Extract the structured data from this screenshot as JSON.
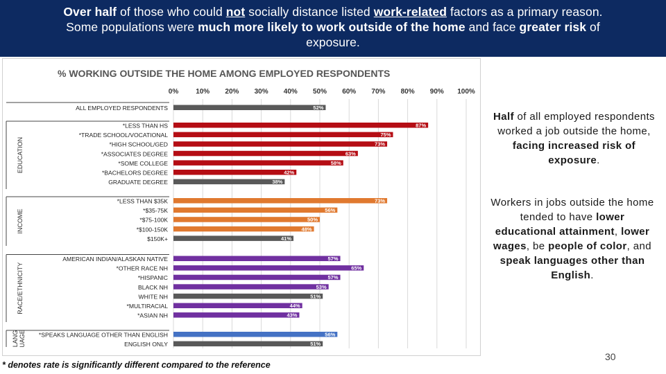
{
  "header": {
    "line1": [
      {
        "text": "Over half",
        "style": "b"
      },
      {
        "text": " of those who could ",
        "style": ""
      },
      {
        "text": "not",
        "style": "b u"
      },
      {
        "text": " socially distance listed ",
        "style": ""
      },
      {
        "text": "work-related",
        "style": "b u"
      },
      {
        "text": " factors as a primary reason.",
        "style": ""
      }
    ],
    "line2": [
      {
        "text": "Some populations were ",
        "style": ""
      },
      {
        "text": "much more likely to work outside of the home",
        "style": "b"
      },
      {
        "text": " and face ",
        "style": ""
      },
      {
        "text": "greater risk",
        "style": "b"
      },
      {
        "text": " of",
        "style": ""
      }
    ],
    "line3": [
      {
        "text": "exposure.",
        "style": ""
      }
    ]
  },
  "callout_1": [
    {
      "text": "Half",
      "style": "b"
    },
    {
      "text": " of all employed respondents worked a job outside the home, ",
      "style": ""
    },
    {
      "text": "facing increased risk of exposure",
      "style": "b"
    },
    {
      "text": ".",
      "style": ""
    }
  ],
  "callout_2": [
    {
      "text": "Workers in jobs outside the home tended to have ",
      "style": ""
    },
    {
      "text": "lower educational attainment",
      "style": "b"
    },
    {
      "text": ", ",
      "style": ""
    },
    {
      "text": "lower wages",
      "style": "b"
    },
    {
      "text": ", be ",
      "style": ""
    },
    {
      "text": "people of color",
      "style": "b"
    },
    {
      "text": ", and ",
      "style": ""
    },
    {
      "text": "speak languages other than English",
      "style": "b"
    },
    {
      "text": ".",
      "style": ""
    }
  ],
  "footnote": "* denotes rate is significantly different compared to the reference",
  "page_number": "30",
  "colors": {
    "header_bg": "#0d2a61",
    "gray": "#595959",
    "red": "#b50d14",
    "orange": "#e0792f",
    "purple": "#7030a0",
    "blue": "#4472c4"
  },
  "chart_data": {
    "type": "bar",
    "orientation": "horizontal",
    "title": "% WORKING OUTSIDE THE HOME AMONG EMPLOYED RESPONDENTS",
    "xlim": [
      0,
      100
    ],
    "x_ticks": [
      "0%",
      "10%",
      "20%",
      "30%",
      "40%",
      "50%",
      "60%",
      "70%",
      "80%",
      "90%",
      "100%"
    ],
    "grid": true,
    "groups": [
      {
        "label": "",
        "rows": [
          {
            "label": "ALL EMPLOYED RESPONDENTS",
            "value": 52,
            "color": "gray"
          }
        ]
      },
      {
        "label": "EDUCATION",
        "rows": [
          {
            "label": "*LESS THAN HS",
            "value": 87,
            "color": "red"
          },
          {
            "label": "*TRADE SCHOOL/VOCATIONAL",
            "value": 75,
            "color": "red"
          },
          {
            "label": "*HIGH SCHOOL/GED",
            "value": 73,
            "color": "red"
          },
          {
            "label": "*ASSOCIATES DEGREE",
            "value": 63,
            "color": "red"
          },
          {
            "label": "*SOME COLLEGE",
            "value": 58,
            "color": "red"
          },
          {
            "label": "*BACHELORS DEGREE",
            "value": 42,
            "color": "red"
          },
          {
            "label": "GRADUATE DEGREE",
            "value": 38,
            "color": "gray"
          }
        ]
      },
      {
        "label": "INCOME",
        "rows": [
          {
            "label": "*LESS THAN $35K",
            "value": 73,
            "color": "orange"
          },
          {
            "label": "*$35-75K",
            "value": 56,
            "color": "orange"
          },
          {
            "label": "*$75-100K",
            "value": 50,
            "color": "orange"
          },
          {
            "label": "*$100-150K",
            "value": 48,
            "color": "orange"
          },
          {
            "label": "$150K+",
            "value": 41,
            "color": "gray"
          }
        ]
      },
      {
        "label": "RACE/ETHNICITY",
        "rows": [
          {
            "label": "AMERICAN INDIAN/ALASKAN NATIVE",
            "value": 57,
            "color": "purple"
          },
          {
            "label": "*OTHER RACE NH",
            "value": 65,
            "color": "purple"
          },
          {
            "label": "*HISPANIC",
            "value": 57,
            "color": "purple"
          },
          {
            "label": "BLACK NH",
            "value": 53,
            "color": "purple"
          },
          {
            "label": "WHITE NH",
            "value": 51,
            "color": "gray"
          },
          {
            "label": "*MULTIRACIAL",
            "value": 44,
            "color": "purple"
          },
          {
            "label": "*ASIAN NH",
            "value": 43,
            "color": "purple"
          }
        ]
      },
      {
        "label": "LANG\nUAGE",
        "rows": [
          {
            "label": "*SPEAKS LANGUAGE OTHER THAN ENGLISH",
            "value": 56,
            "color": "blue"
          },
          {
            "label": "ENGLISH ONLY",
            "value": 51,
            "color": "gray"
          }
        ]
      }
    ]
  }
}
